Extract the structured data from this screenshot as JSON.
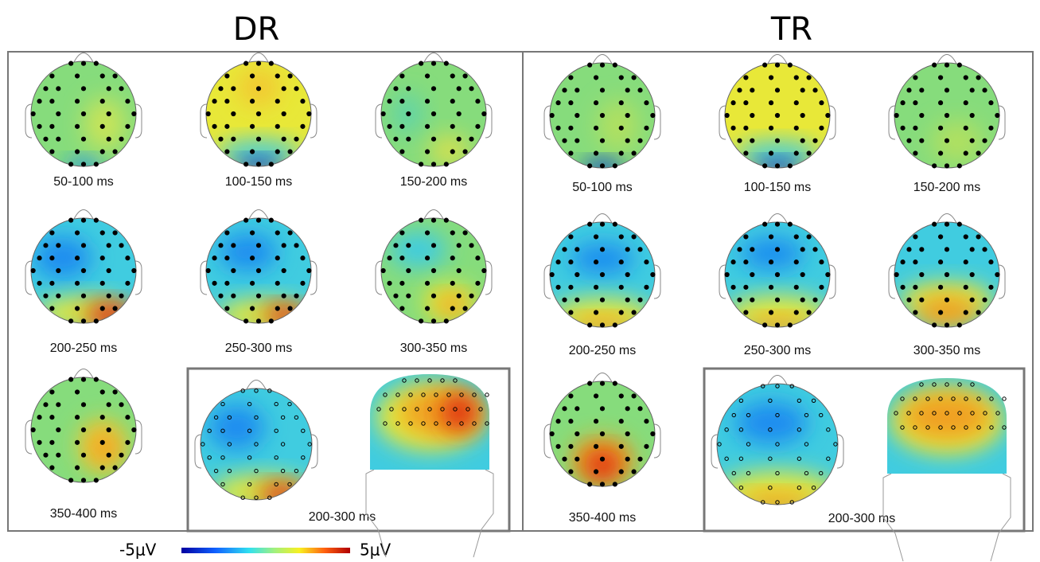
{
  "panels": [
    {
      "title": "DR",
      "maps": [
        {
          "label": "50-100 ms"
        },
        {
          "label": "100-150 ms"
        },
        {
          "label": "150-200 ms"
        },
        {
          "label": "200-250 ms"
        },
        {
          "label": "250-300 ms"
        },
        {
          "label": "300-350 ms"
        },
        {
          "label": "350-400 ms"
        }
      ],
      "inset": {
        "label": "200-300 ms"
      }
    },
    {
      "title": "TR",
      "maps": [
        {
          "label": "50-100 ms"
        },
        {
          "label": "100-150 ms"
        },
        {
          "label": "150-200 ms"
        },
        {
          "label": "200-250 ms"
        },
        {
          "label": "250-300 ms"
        },
        {
          "label": "300-350 ms"
        },
        {
          "label": "350-400 ms"
        }
      ],
      "inset": {
        "label": "200-300 ms"
      }
    }
  ],
  "colorbar": {
    "min_label": "-5μV",
    "max_label": "5μV"
  }
}
